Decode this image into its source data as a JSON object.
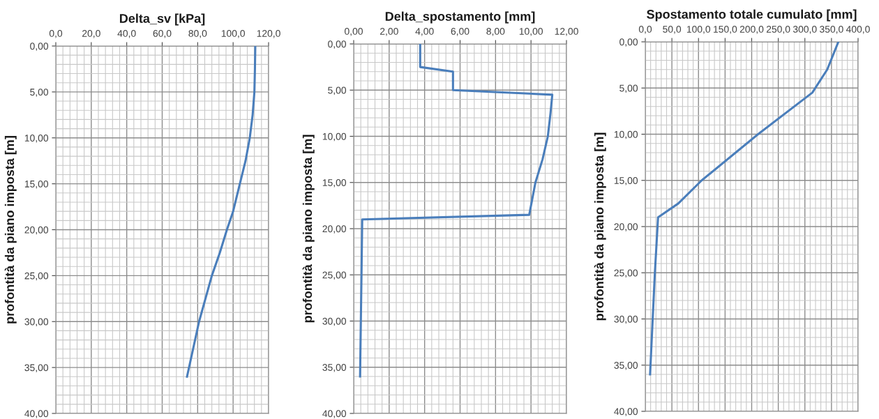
{
  "chart_data": [
    {
      "type": "line",
      "title": "Delta_sv [kPa]",
      "ylabel": "profontità da piano imposta [m]",
      "grid": true,
      "marker": "none",
      "line_style": "solid",
      "series": [
        {
          "color": "#4a7ebb",
          "x": [
            112.5,
            112.3,
            112.0,
            111.0,
            109.4,
            107.0,
            103.8,
            100.0,
            96.5,
            92.5,
            88.0,
            80.8,
            74.0
          ],
          "values": [
            0,
            2.5,
            5,
            7.5,
            10,
            12.5,
            15,
            18,
            20,
            22.5,
            25,
            30,
            36
          ]
        }
      ],
      "xlim": [
        0,
        120
      ],
      "ylim": [
        40,
        0
      ],
      "xticks": [
        {
          "value": 0,
          "label": "0,0"
        },
        {
          "value": 4,
          "label": null
        },
        {
          "value": 8,
          "label": null
        },
        {
          "value": 12,
          "label": null
        },
        {
          "value": 16,
          "label": null
        },
        {
          "value": 20,
          "label": "20,0"
        },
        {
          "value": 24,
          "label": null
        },
        {
          "value": 28,
          "label": null
        },
        {
          "value": 32,
          "label": null
        },
        {
          "value": 36,
          "label": null
        },
        {
          "value": 40,
          "label": "40,0"
        },
        {
          "value": 44,
          "label": null
        },
        {
          "value": 48,
          "label": null
        },
        {
          "value": 52,
          "label": null
        },
        {
          "value": 56,
          "label": null
        },
        {
          "value": 60,
          "label": "60,0"
        },
        {
          "value": 64,
          "label": null
        },
        {
          "value": 68,
          "label": null
        },
        {
          "value": 72,
          "label": null
        },
        {
          "value": 76,
          "label": null
        },
        {
          "value": 80,
          "label": "80,0"
        },
        {
          "value": 84,
          "label": null
        },
        {
          "value": 88,
          "label": null
        },
        {
          "value": 92,
          "label": null
        },
        {
          "value": 96,
          "label": null
        },
        {
          "value": 100,
          "label": "100,0"
        },
        {
          "value": 104,
          "label": null
        },
        {
          "value": 108,
          "label": null
        },
        {
          "value": 112,
          "label": null
        },
        {
          "value": 116,
          "label": null
        },
        {
          "value": 120,
          "label": "120,0"
        }
      ],
      "yticks": [
        {
          "value": 0,
          "label": "0,00"
        },
        {
          "value": 1,
          "label": null
        },
        {
          "value": 2,
          "label": null
        },
        {
          "value": 3,
          "label": null
        },
        {
          "value": 4,
          "label": null
        },
        {
          "value": 5,
          "label": "5,00"
        },
        {
          "value": 6,
          "label": null
        },
        {
          "value": 7,
          "label": null
        },
        {
          "value": 8,
          "label": null
        },
        {
          "value": 9,
          "label": null
        },
        {
          "value": 10,
          "label": "10,00"
        },
        {
          "value": 11,
          "label": null
        },
        {
          "value": 12,
          "label": null
        },
        {
          "value": 13,
          "label": null
        },
        {
          "value": 14,
          "label": null
        },
        {
          "value": 15,
          "label": "15,00"
        },
        {
          "value": 16,
          "label": null
        },
        {
          "value": 17,
          "label": null
        },
        {
          "value": 18,
          "label": null
        },
        {
          "value": 19,
          "label": null
        },
        {
          "value": 20,
          "label": "20,00"
        },
        {
          "value": 21,
          "label": null
        },
        {
          "value": 22,
          "label": null
        },
        {
          "value": 23,
          "label": null
        },
        {
          "value": 24,
          "label": null
        },
        {
          "value": 25,
          "label": "25,00"
        },
        {
          "value": 26,
          "label": null
        },
        {
          "value": 27,
          "label": null
        },
        {
          "value": 28,
          "label": null
        },
        {
          "value": 29,
          "label": null
        },
        {
          "value": 30,
          "label": "30,00"
        },
        {
          "value": 31,
          "label": null
        },
        {
          "value": 32,
          "label": null
        },
        {
          "value": 33,
          "label": null
        },
        {
          "value": 34,
          "label": null
        },
        {
          "value": 35,
          "label": "35,00"
        },
        {
          "value": 36,
          "label": null
        },
        {
          "value": 37,
          "label": null
        },
        {
          "value": 38,
          "label": null
        },
        {
          "value": 39,
          "label": null
        },
        {
          "value": 40,
          "label": "40,00"
        }
      ]
    },
    {
      "type": "line",
      "title": "Delta_spostamento [mm]",
      "ylabel": "profontità da piano imposta [m]",
      "grid": true,
      "marker": "none",
      "line_style": "solid",
      "series": [
        {
          "color": "#4a7ebb",
          "x": [
            3.75,
            3.75,
            5.6,
            5.6,
            11.2,
            11.1,
            10.95,
            10.65,
            10.25,
            9.9,
            0.48,
            0.44,
            0.36
          ],
          "values": [
            0,
            2.5,
            3,
            5,
            5.5,
            7.5,
            10,
            12.5,
            15,
            18.5,
            19,
            25,
            36
          ]
        }
      ],
      "xlim": [
        0,
        12
      ],
      "ylim": [
        40,
        0
      ],
      "xticks": [
        {
          "value": 0,
          "label": "0,00"
        },
        {
          "value": 0.4,
          "label": null
        },
        {
          "value": 0.8,
          "label": null
        },
        {
          "value": 1.2,
          "label": null
        },
        {
          "value": 1.6,
          "label": null
        },
        {
          "value": 2,
          "label": "2,00"
        },
        {
          "value": 2.4,
          "label": null
        },
        {
          "value": 2.8,
          "label": null
        },
        {
          "value": 3.2,
          "label": null
        },
        {
          "value": 3.6,
          "label": null
        },
        {
          "value": 4,
          "label": "4,00"
        },
        {
          "value": 4.4,
          "label": null
        },
        {
          "value": 4.8,
          "label": null
        },
        {
          "value": 5.2,
          "label": null
        },
        {
          "value": 5.6,
          "label": null
        },
        {
          "value": 6,
          "label": "6,00"
        },
        {
          "value": 6.4,
          "label": null
        },
        {
          "value": 6.8,
          "label": null
        },
        {
          "value": 7.2,
          "label": null
        },
        {
          "value": 7.6,
          "label": null
        },
        {
          "value": 8,
          "label": "8,00"
        },
        {
          "value": 8.4,
          "label": null
        },
        {
          "value": 8.8,
          "label": null
        },
        {
          "value": 9.2,
          "label": null
        },
        {
          "value": 9.6,
          "label": null
        },
        {
          "value": 10,
          "label": "10,00"
        },
        {
          "value": 10.4,
          "label": null
        },
        {
          "value": 10.8,
          "label": null
        },
        {
          "value": 11.2,
          "label": null
        },
        {
          "value": 11.6,
          "label": null
        },
        {
          "value": 12,
          "label": "12,00"
        }
      ],
      "yticks": [
        {
          "value": 0,
          "label": "0,00"
        },
        {
          "value": 1,
          "label": null
        },
        {
          "value": 2,
          "label": null
        },
        {
          "value": 3,
          "label": null
        },
        {
          "value": 4,
          "label": null
        },
        {
          "value": 5,
          "label": "5,00"
        },
        {
          "value": 6,
          "label": null
        },
        {
          "value": 7,
          "label": null
        },
        {
          "value": 8,
          "label": null
        },
        {
          "value": 9,
          "label": null
        },
        {
          "value": 10,
          "label": "10,00"
        },
        {
          "value": 11,
          "label": null
        },
        {
          "value": 12,
          "label": null
        },
        {
          "value": 13,
          "label": null
        },
        {
          "value": 14,
          "label": null
        },
        {
          "value": 15,
          "label": "15,00"
        },
        {
          "value": 16,
          "label": null
        },
        {
          "value": 17,
          "label": null
        },
        {
          "value": 18,
          "label": null
        },
        {
          "value": 19,
          "label": null
        },
        {
          "value": 20,
          "label": "20,00"
        },
        {
          "value": 21,
          "label": null
        },
        {
          "value": 22,
          "label": null
        },
        {
          "value": 23,
          "label": null
        },
        {
          "value": 24,
          "label": null
        },
        {
          "value": 25,
          "label": "25,00"
        },
        {
          "value": 26,
          "label": null
        },
        {
          "value": 27,
          "label": null
        },
        {
          "value": 28,
          "label": null
        },
        {
          "value": 29,
          "label": null
        },
        {
          "value": 30,
          "label": "30,00"
        },
        {
          "value": 31,
          "label": null
        },
        {
          "value": 32,
          "label": null
        },
        {
          "value": 33,
          "label": null
        },
        {
          "value": 34,
          "label": null
        },
        {
          "value": 35,
          "label": "35,00"
        },
        {
          "value": 36,
          "label": null
        },
        {
          "value": 37,
          "label": null
        },
        {
          "value": 38,
          "label": null
        },
        {
          "value": 39,
          "label": null
        },
        {
          "value": 40,
          "label": "40,00"
        }
      ]
    },
    {
      "type": "line",
      "title": "Spostamento totale cumulato [mm]",
      "ylabel": "profontità da piano imposta [m]",
      "grid": true,
      "marker": "none",
      "line_style": "solid",
      "series": [
        {
          "color": "#4a7ebb",
          "x": [
            363,
            342,
            314,
            212,
            106,
            62,
            24,
            18,
            9
          ],
          "values": [
            0,
            3,
            5.5,
            10,
            15,
            17.5,
            19,
            25,
            36
          ]
        }
      ],
      "xlim": [
        0,
        400
      ],
      "ylim": [
        40,
        0
      ],
      "xticks": [
        {
          "value": 0,
          "label": "0,0"
        },
        {
          "value": 10,
          "label": null
        },
        {
          "value": 20,
          "label": null
        },
        {
          "value": 30,
          "label": null
        },
        {
          "value": 40,
          "label": null
        },
        {
          "value": 50,
          "label": "50,0"
        },
        {
          "value": 60,
          "label": null
        },
        {
          "value": 70,
          "label": null
        },
        {
          "value": 80,
          "label": null
        },
        {
          "value": 90,
          "label": null
        },
        {
          "value": 100,
          "label": "100,0"
        },
        {
          "value": 110,
          "label": null
        },
        {
          "value": 120,
          "label": null
        },
        {
          "value": 130,
          "label": null
        },
        {
          "value": 140,
          "label": null
        },
        {
          "value": 150,
          "label": "150,0"
        },
        {
          "value": 160,
          "label": null
        },
        {
          "value": 170,
          "label": null
        },
        {
          "value": 180,
          "label": null
        },
        {
          "value": 190,
          "label": null
        },
        {
          "value": 200,
          "label": "200,0"
        },
        {
          "value": 210,
          "label": null
        },
        {
          "value": 220,
          "label": null
        },
        {
          "value": 230,
          "label": null
        },
        {
          "value": 240,
          "label": null
        },
        {
          "value": 250,
          "label": "250,0"
        },
        {
          "value": 260,
          "label": null
        },
        {
          "value": 270,
          "label": null
        },
        {
          "value": 280,
          "label": null
        },
        {
          "value": 290,
          "label": null
        },
        {
          "value": 300,
          "label": "300,0"
        },
        {
          "value": 310,
          "label": null
        },
        {
          "value": 320,
          "label": null
        },
        {
          "value": 330,
          "label": null
        },
        {
          "value": 340,
          "label": null
        },
        {
          "value": 350,
          "label": "350,0"
        },
        {
          "value": 360,
          "label": null
        },
        {
          "value": 370,
          "label": null
        },
        {
          "value": 380,
          "label": null
        },
        {
          "value": 390,
          "label": null
        },
        {
          "value": 400,
          "label": "400,0"
        }
      ],
      "yticks": [
        {
          "value": 0,
          "label": "0,00"
        },
        {
          "value": 1,
          "label": null
        },
        {
          "value": 2,
          "label": null
        },
        {
          "value": 3,
          "label": null
        },
        {
          "value": 4,
          "label": null
        },
        {
          "value": 5,
          "label": "5,00"
        },
        {
          "value": 6,
          "label": null
        },
        {
          "value": 7,
          "label": null
        },
        {
          "value": 8,
          "label": null
        },
        {
          "value": 9,
          "label": null
        },
        {
          "value": 10,
          "label": "10,00"
        },
        {
          "value": 11,
          "label": null
        },
        {
          "value": 12,
          "label": null
        },
        {
          "value": 13,
          "label": null
        },
        {
          "value": 14,
          "label": null
        },
        {
          "value": 15,
          "label": "15,00"
        },
        {
          "value": 16,
          "label": null
        },
        {
          "value": 17,
          "label": null
        },
        {
          "value": 18,
          "label": null
        },
        {
          "value": 19,
          "label": null
        },
        {
          "value": 20,
          "label": "20,00"
        },
        {
          "value": 21,
          "label": null
        },
        {
          "value": 22,
          "label": null
        },
        {
          "value": 23,
          "label": null
        },
        {
          "value": 24,
          "label": null
        },
        {
          "value": 25,
          "label": "25,00"
        },
        {
          "value": 26,
          "label": null
        },
        {
          "value": 27,
          "label": null
        },
        {
          "value": 28,
          "label": null
        },
        {
          "value": 29,
          "label": null
        },
        {
          "value": 30,
          "label": "30,00"
        },
        {
          "value": 31,
          "label": null
        },
        {
          "value": 32,
          "label": null
        },
        {
          "value": 33,
          "label": null
        },
        {
          "value": 34,
          "label": null
        },
        {
          "value": 35,
          "label": "35,00"
        },
        {
          "value": 36,
          "label": null
        },
        {
          "value": 37,
          "label": null
        },
        {
          "value": 38,
          "label": null
        },
        {
          "value": 39,
          "label": null
        },
        {
          "value": 40,
          "label": "40,00"
        }
      ]
    }
  ]
}
